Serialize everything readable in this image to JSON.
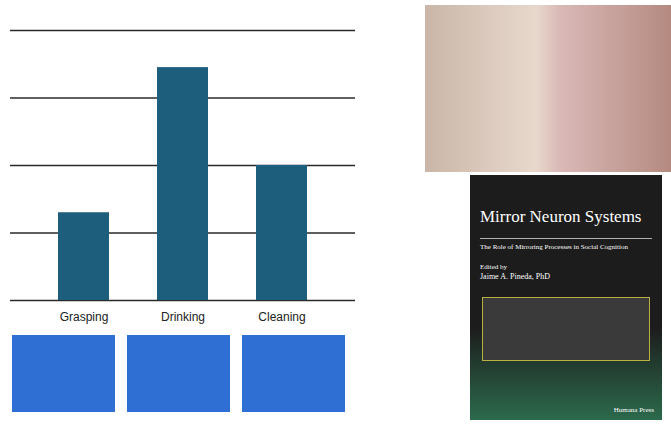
{
  "chart_data": {
    "type": "bar",
    "categories": [
      "Grasping",
      "Drinking",
      "Cleaning"
    ],
    "values": [
      1.3,
      3.45,
      2
    ],
    "color": "#1c5e7c",
    "ylim": [
      0,
      4
    ],
    "yticks": [
      0,
      1,
      2,
      3,
      4
    ],
    "grid": true,
    "tick_labels": "x"
  },
  "book_cover": {
    "title": "Mirror Neuron Systems",
    "subtitle": "The Role of Mirroring Processes in Social Cognition",
    "editor_line": "Edited by",
    "editor": "Jaime A. Pineda, PhD",
    "publisher": "Humana Press"
  }
}
